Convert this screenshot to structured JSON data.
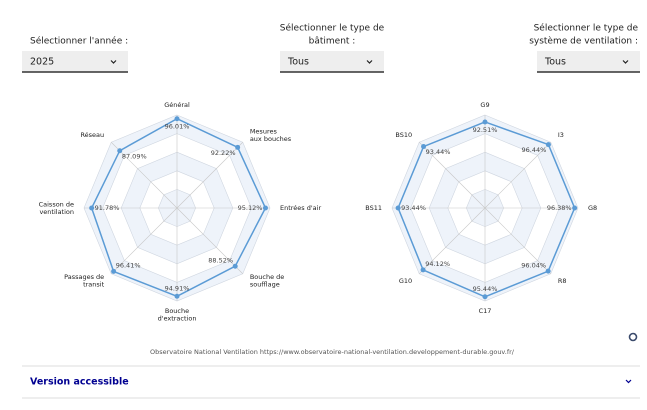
{
  "filters": [
    {
      "label": [
        "Sélectionner l'année :"
      ],
      "value": "2025"
    },
    {
      "label": [
        "Sélectionner le type de",
        "bâtiment :"
      ],
      "value": "Tous"
    },
    {
      "label": [
        "Sélectionner le type de",
        "système de ventilation :"
      ],
      "value": "Tous"
    }
  ],
  "chart_data": [
    {
      "type": "radar",
      "categories": [
        [
          "Général"
        ],
        [
          "Mesures",
          "aux bouches"
        ],
        [
          "Entrées d'air"
        ],
        [
          "Bouche de",
          "soufflage"
        ],
        [
          "Bouche",
          "d'extraction"
        ],
        [
          "Passages de",
          "transit"
        ],
        [
          "Caisson de",
          "ventilation"
        ],
        [
          "Réseau"
        ]
      ],
      "values": [
        96.01,
        92.22,
        95.12,
        88.52,
        94.91,
        96.41,
        91.78,
        87.09
      ],
      "value_labels": [
        "96.01%",
        "92.22%",
        "95.12%",
        "88.52%",
        "94.91%",
        "96.41%",
        "91.78%",
        "87.09%"
      ],
      "color": "#5b9bd5",
      "rlim": [
        0,
        100
      ],
      "rticks": [
        20,
        40,
        60,
        80,
        100
      ]
    },
    {
      "type": "radar",
      "categories": [
        [
          "G9"
        ],
        [
          "I3"
        ],
        [
          "G8"
        ],
        [
          "R8"
        ],
        [
          "C17"
        ],
        [
          "G10"
        ],
        [
          "BS11"
        ],
        [
          "BS10"
        ]
      ],
      "values": [
        92.51,
        96.44,
        96.38,
        96.04,
        95.44,
        94.12,
        93.44,
        93.44
      ],
      "value_labels": [
        "92.51%",
        "96.44%",
        "96.38%",
        "96.04%",
        "95.44%",
        "94.12%",
        "93.44%",
        "93.44%"
      ],
      "color": "#5b9bd5",
      "rlim": [
        0,
        100
      ],
      "rticks": [
        20,
        40,
        60,
        80,
        100
      ]
    }
  ],
  "source": "Observatoire National Ventilation https://www.observatoire-national-ventilation.developpement-durable.gouv.fr/",
  "accessible": "Version accessible"
}
